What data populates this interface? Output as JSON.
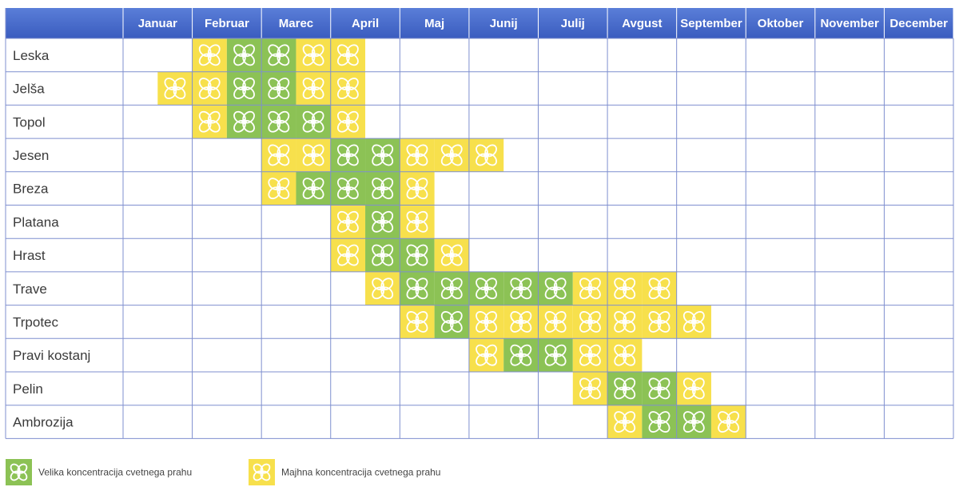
{
  "chart_data": {
    "type": "heatmap",
    "title": "",
    "months": [
      "Januar",
      "Februar",
      "Marec",
      "April",
      "Maj",
      "Junij",
      "Julij",
      "Avgust",
      "September",
      "Oktober",
      "November",
      "December"
    ],
    "slots_per_month": 2,
    "levels": {
      "high": {
        "label": "Velika koncentracija cvetnega prahu",
        "color": "#8cc255"
      },
      "low": {
        "label": "Majhna koncentracija cvetnega prahu",
        "color": "#f7e04c"
      }
    },
    "plants": [
      {
        "name": "Leska",
        "slots": [
          {
            "month": "Februar",
            "half": 1,
            "level": "low"
          },
          {
            "month": "Februar",
            "half": 2,
            "level": "high"
          },
          {
            "month": "Marec",
            "half": 1,
            "level": "high"
          },
          {
            "month": "Marec",
            "half": 2,
            "level": "low"
          },
          {
            "month": "April",
            "half": 1,
            "level": "low"
          }
        ]
      },
      {
        "name": "Jelša",
        "slots": [
          {
            "month": "Januar",
            "half": 2,
            "level": "low"
          },
          {
            "month": "Februar",
            "half": 1,
            "level": "low"
          },
          {
            "month": "Februar",
            "half": 2,
            "level": "high"
          },
          {
            "month": "Marec",
            "half": 1,
            "level": "high"
          },
          {
            "month": "Marec",
            "half": 2,
            "level": "low"
          },
          {
            "month": "April",
            "half": 1,
            "level": "low"
          }
        ]
      },
      {
        "name": "Topol",
        "slots": [
          {
            "month": "Februar",
            "half": 1,
            "level": "low"
          },
          {
            "month": "Februar",
            "half": 2,
            "level": "high"
          },
          {
            "month": "Marec",
            "half": 1,
            "level": "high"
          },
          {
            "month": "Marec",
            "half": 2,
            "level": "high"
          },
          {
            "month": "April",
            "half": 1,
            "level": "low"
          }
        ]
      },
      {
        "name": "Jesen",
        "slots": [
          {
            "month": "Marec",
            "half": 1,
            "level": "low"
          },
          {
            "month": "Marec",
            "half": 2,
            "level": "low"
          },
          {
            "month": "April",
            "half": 1,
            "level": "high"
          },
          {
            "month": "April",
            "half": 2,
            "level": "high"
          },
          {
            "month": "Maj",
            "half": 1,
            "level": "low"
          },
          {
            "month": "Maj",
            "half": 2,
            "level": "low"
          },
          {
            "month": "Junij",
            "half": 1,
            "level": "low"
          }
        ]
      },
      {
        "name": "Breza",
        "slots": [
          {
            "month": "Marec",
            "half": 1,
            "level": "low"
          },
          {
            "month": "Marec",
            "half": 2,
            "level": "high"
          },
          {
            "month": "April",
            "half": 1,
            "level": "high"
          },
          {
            "month": "April",
            "half": 2,
            "level": "high"
          },
          {
            "month": "Maj",
            "half": 1,
            "level": "low"
          }
        ]
      },
      {
        "name": "Platana",
        "slots": [
          {
            "month": "April",
            "half": 1,
            "level": "low"
          },
          {
            "month": "April",
            "half": 2,
            "level": "high"
          },
          {
            "month": "Maj",
            "half": 1,
            "level": "low"
          }
        ]
      },
      {
        "name": "Hrast",
        "slots": [
          {
            "month": "April",
            "half": 1,
            "level": "low"
          },
          {
            "month": "April",
            "half": 2,
            "level": "high"
          },
          {
            "month": "Maj",
            "half": 1,
            "level": "high"
          },
          {
            "month": "Maj",
            "half": 2,
            "level": "low"
          }
        ]
      },
      {
        "name": "Trave",
        "slots": [
          {
            "month": "April",
            "half": 2,
            "level": "low"
          },
          {
            "month": "Maj",
            "half": 1,
            "level": "high"
          },
          {
            "month": "Maj",
            "half": 2,
            "level": "high"
          },
          {
            "month": "Junij",
            "half": 1,
            "level": "high"
          },
          {
            "month": "Junij",
            "half": 2,
            "level": "high"
          },
          {
            "month": "Julij",
            "half": 1,
            "level": "high"
          },
          {
            "month": "Julij",
            "half": 2,
            "level": "low"
          },
          {
            "month": "Avgust",
            "half": 1,
            "level": "low"
          },
          {
            "month": "Avgust",
            "half": 2,
            "level": "low"
          }
        ]
      },
      {
        "name": "Trpotec",
        "slots": [
          {
            "month": "Maj",
            "half": 1,
            "level": "low"
          },
          {
            "month": "Maj",
            "half": 2,
            "level": "high"
          },
          {
            "month": "Junij",
            "half": 1,
            "level": "low"
          },
          {
            "month": "Junij",
            "half": 2,
            "level": "low"
          },
          {
            "month": "Julij",
            "half": 1,
            "level": "low"
          },
          {
            "month": "Julij",
            "half": 2,
            "level": "low"
          },
          {
            "month": "Avgust",
            "half": 1,
            "level": "low"
          },
          {
            "month": "Avgust",
            "half": 2,
            "level": "low"
          },
          {
            "month": "September",
            "half": 1,
            "level": "low"
          }
        ]
      },
      {
        "name": "Pravi kostanj",
        "slots": [
          {
            "month": "Junij",
            "half": 1,
            "level": "low"
          },
          {
            "month": "Junij",
            "half": 2,
            "level": "high"
          },
          {
            "month": "Julij",
            "half": 1,
            "level": "high"
          },
          {
            "month": "Julij",
            "half": 2,
            "level": "low"
          },
          {
            "month": "Avgust",
            "half": 1,
            "level": "low"
          }
        ]
      },
      {
        "name": "Pelin",
        "slots": [
          {
            "month": "Julij",
            "half": 2,
            "level": "low"
          },
          {
            "month": "Avgust",
            "half": 1,
            "level": "high"
          },
          {
            "month": "Avgust",
            "half": 2,
            "level": "high"
          },
          {
            "month": "September",
            "half": 1,
            "level": "low"
          }
        ]
      },
      {
        "name": "Ambrozija",
        "slots": [
          {
            "month": "Avgust",
            "half": 1,
            "level": "low"
          },
          {
            "month": "Avgust",
            "half": 2,
            "level": "high"
          },
          {
            "month": "September",
            "half": 1,
            "level": "high"
          },
          {
            "month": "September",
            "half": 2,
            "level": "low"
          }
        ]
      }
    ]
  },
  "colors": {
    "header_bg_top": "#5a7ed8",
    "header_bg_bottom": "#3a5cbf",
    "grid_line": "#7f8fcf",
    "flower_icon": "#ffffff"
  }
}
